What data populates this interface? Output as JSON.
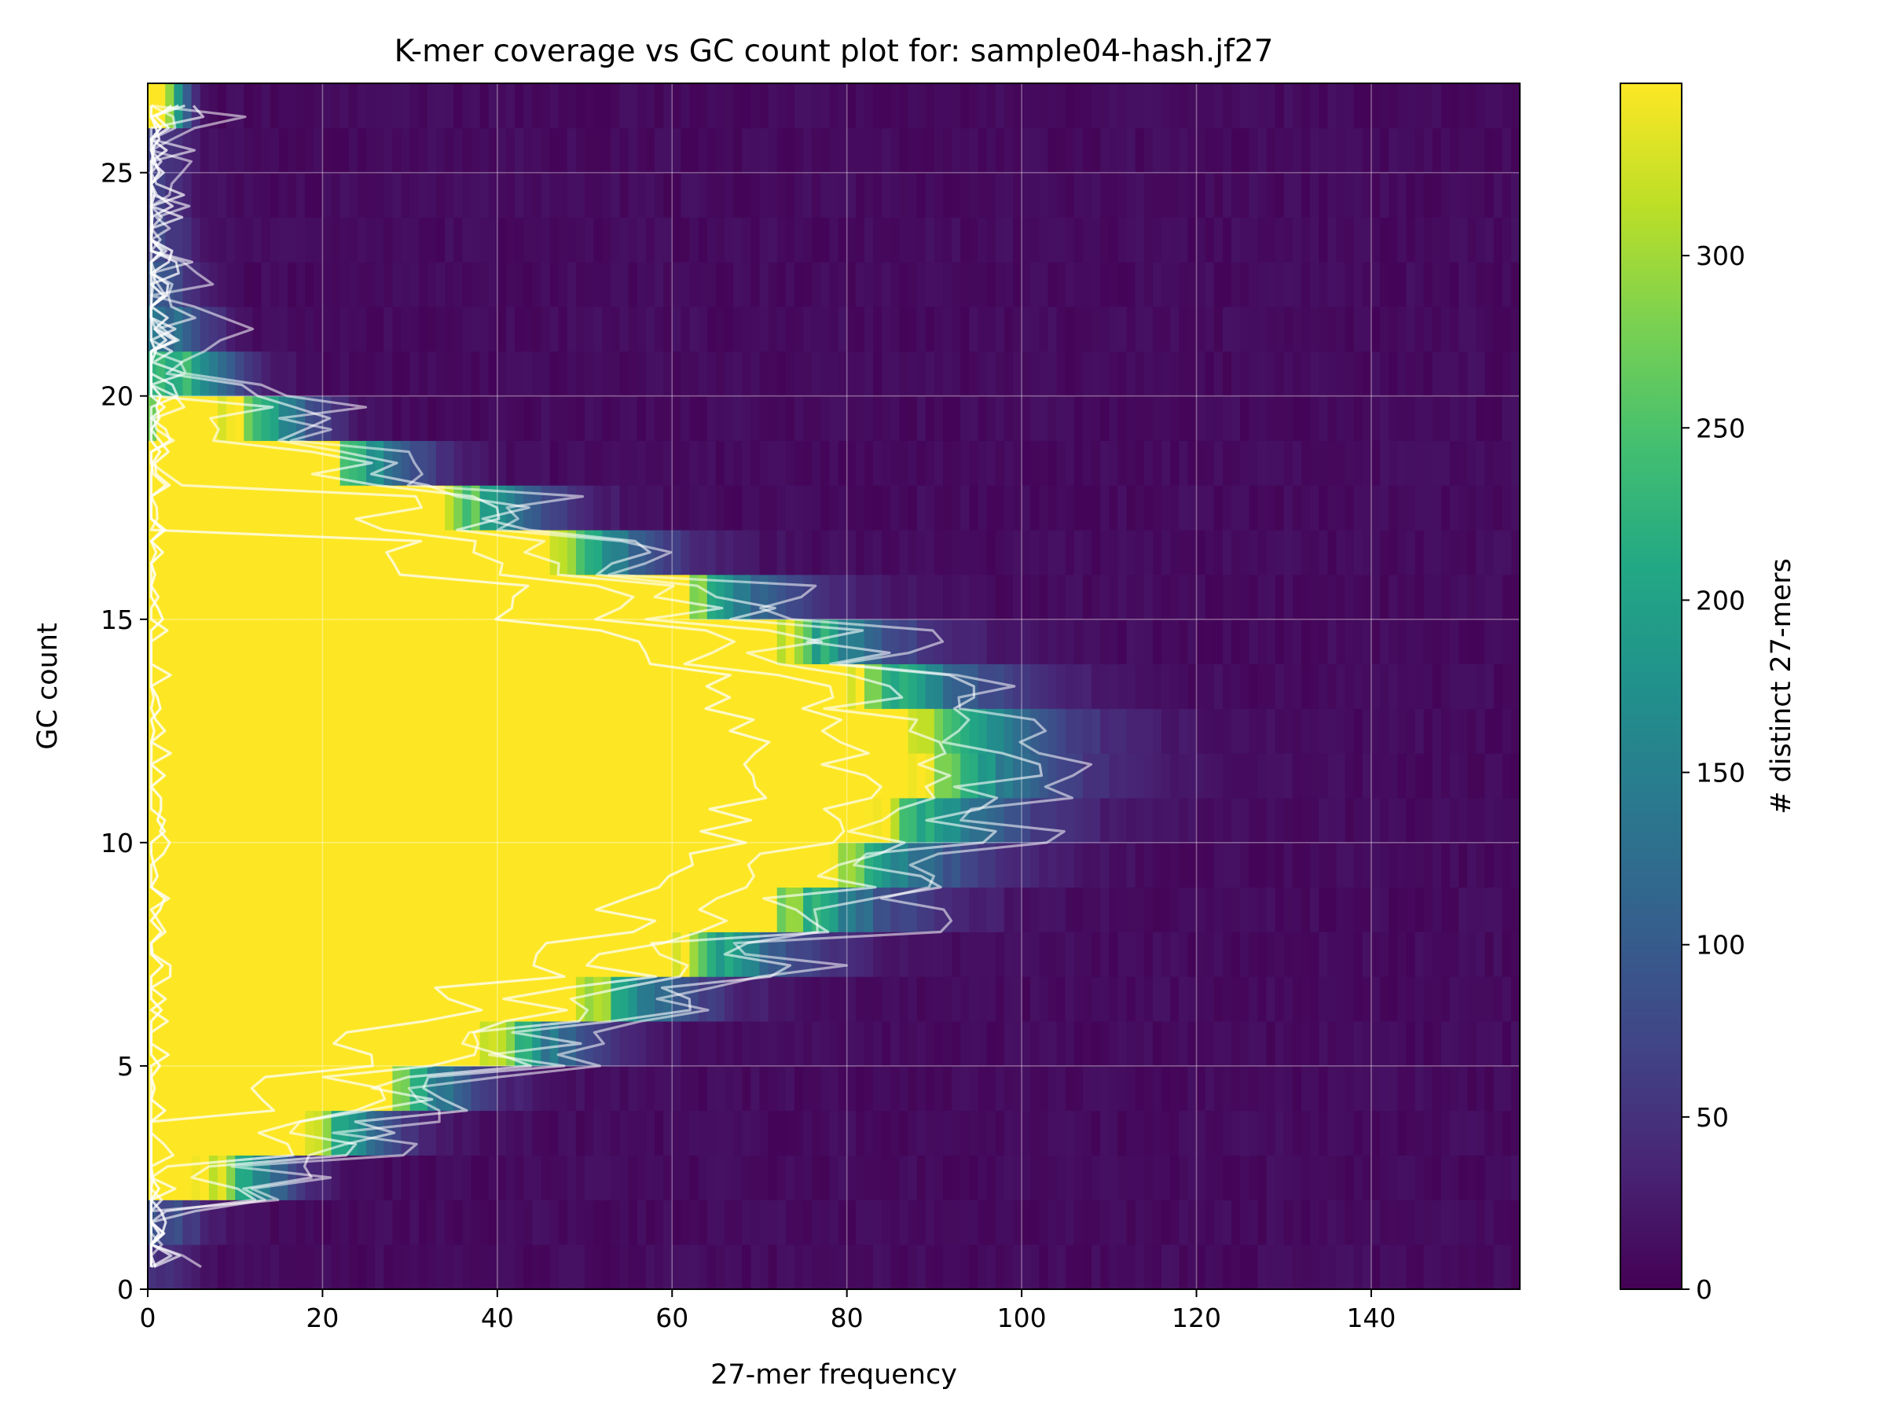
{
  "chart_data": {
    "type": "heatmap",
    "title": "K-mer coverage vs GC count plot for: sample04-hash.jf27",
    "xlabel": "27-mer frequency",
    "ylabel": "GC count",
    "colorbar_label": "# distinct 27-mers",
    "xlim": [
      0,
      157
    ],
    "ylim": [
      0,
      27
    ],
    "color_range": [
      0,
      350
    ],
    "x_ticks": [
      0,
      20,
      40,
      60,
      80,
      100,
      120,
      140
    ],
    "y_ticks": [
      0,
      5,
      10,
      15,
      20,
      25
    ],
    "colorbar_ticks": [
      0,
      50,
      100,
      150,
      200,
      250,
      300
    ],
    "colormap": "viridis",
    "grid": true,
    "contours": "white",
    "gc_rows": [
      {
        "gc": 0,
        "peak": 1,
        "sigma": 3,
        "amp": 40
      },
      {
        "gc": 1,
        "peak": 1,
        "sigma": 4,
        "amp": 80
      },
      {
        "gc": 2,
        "peak": 3,
        "sigma": 7,
        "amp": 400
      },
      {
        "gc": 3,
        "peak": 5,
        "sigma": 10,
        "amp": 900
      },
      {
        "gc": 4,
        "peak": 8,
        "sigma": 12,
        "amp": 1300
      },
      {
        "gc": 5,
        "peak": 12,
        "sigma": 15,
        "amp": 1700
      },
      {
        "gc": 6,
        "peak": 18,
        "sigma": 17,
        "amp": 2000
      },
      {
        "gc": 7,
        "peak": 24,
        "sigma": 19,
        "amp": 2200
      },
      {
        "gc": 8,
        "peak": 30,
        "sigma": 21,
        "amp": 2400
      },
      {
        "gc": 9,
        "peak": 34,
        "sigma": 22,
        "amp": 2500
      },
      {
        "gc": 10,
        "peak": 38,
        "sigma": 23,
        "amp": 2500
      },
      {
        "gc": 11,
        "peak": 40,
        "sigma": 24,
        "amp": 2500
      },
      {
        "gc": 12,
        "peak": 40,
        "sigma": 24,
        "amp": 2400
      },
      {
        "gc": 13,
        "peak": 38,
        "sigma": 22,
        "amp": 2300
      },
      {
        "gc": 14,
        "peak": 34,
        "sigma": 20,
        "amp": 2000
      },
      {
        "gc": 15,
        "peak": 28,
        "sigma": 18,
        "amp": 1700
      },
      {
        "gc": 16,
        "peak": 22,
        "sigma": 15,
        "amp": 1300
      },
      {
        "gc": 17,
        "peak": 16,
        "sigma": 13,
        "amp": 900
      },
      {
        "gc": 18,
        "peak": 10,
        "sigma": 10,
        "amp": 600
      },
      {
        "gc": 19,
        "peak": 6,
        "sigma": 7,
        "amp": 400
      },
      {
        "gc": 20,
        "peak": 3,
        "sigma": 5,
        "amp": 220
      },
      {
        "gc": 21,
        "peak": 2,
        "sigma": 4,
        "amp": 120
      },
      {
        "gc": 22,
        "peak": 1,
        "sigma": 3,
        "amp": 80
      },
      {
        "gc": 23,
        "peak": 1,
        "sigma": 3,
        "amp": 60
      },
      {
        "gc": 24,
        "peak": 1,
        "sigma": 3,
        "amp": 50
      },
      {
        "gc": 25,
        "peak": 1,
        "sigma": 3,
        "amp": 50
      },
      {
        "gc": 26,
        "peak": 1,
        "sigma": 2,
        "amp": 400
      }
    ]
  }
}
